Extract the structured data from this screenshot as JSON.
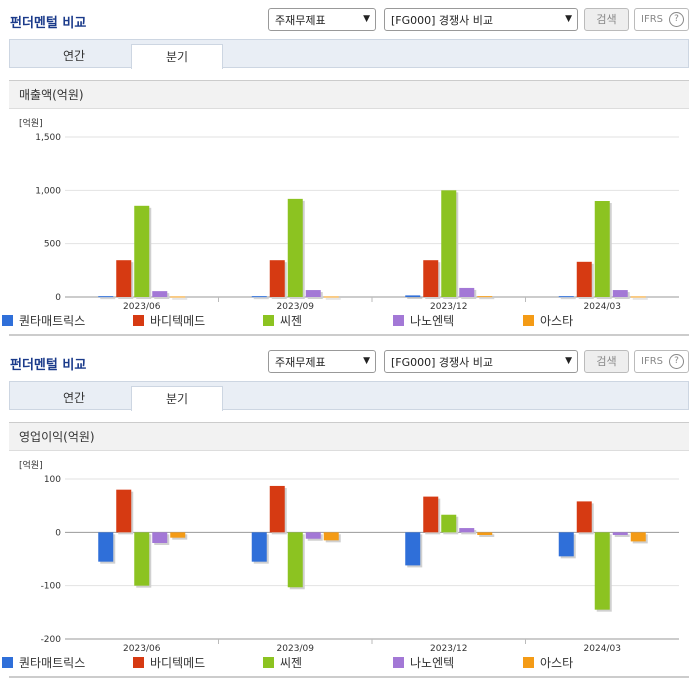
{
  "header_title": "펀더멘털 비교",
  "select_1": "주재무제표",
  "select_2": "[FG000] 경쟁사 비교",
  "search_label": "검색",
  "ifrs_label": "IFRS",
  "help_label": "?",
  "tabs": [
    "연간",
    "분기"
  ],
  "active_tab": 1,
  "colors": [
    "#2f6fd9",
    "#d63a12",
    "#8cc321",
    "#a378d6",
    "#f49b16"
  ],
  "chart_data": [
    {
      "type": "bar",
      "title": "매출액(억원)",
      "unit_label": "[억원]",
      "categories": [
        "2023/06",
        "2023/09",
        "2023/12",
        "2024/03"
      ],
      "ylim": [
        0,
        1500
      ],
      "yticks": [
        0,
        500,
        1000,
        1500
      ],
      "ytick_labels": [
        "0",
        "500",
        "1,000",
        "1,500"
      ],
      "series": [
        {
          "name": "퀀타매트릭스",
          "values": [
            8,
            8,
            15,
            8
          ]
        },
        {
          "name": "바디텍메드",
          "values": [
            345,
            345,
            345,
            330
          ]
        },
        {
          "name": "씨젠",
          "values": [
            855,
            920,
            1000,
            900
          ]
        },
        {
          "name": "나노엔텍",
          "values": [
            55,
            65,
            85,
            65
          ]
        },
        {
          "name": "아스타",
          "values": [
            5,
            5,
            8,
            5
          ]
        }
      ],
      "grid": true,
      "legend": "bottom"
    },
    {
      "type": "bar",
      "title": "영업이익(억원)",
      "unit_label": "[억원]",
      "categories": [
        "2023/06",
        "2023/09",
        "2023/12",
        "2024/03"
      ],
      "ylim": [
        -200,
        100
      ],
      "yticks": [
        -200,
        -100,
        0,
        100
      ],
      "ytick_labels": [
        "-200",
        "-100",
        "0",
        "100"
      ],
      "series": [
        {
          "name": "퀀타매트릭스",
          "values": [
            -55,
            -55,
            -62,
            -45
          ]
        },
        {
          "name": "바디텍메드",
          "values": [
            80,
            87,
            67,
            58
          ]
        },
        {
          "name": "씨젠",
          "values": [
            -100,
            -103,
            33,
            -145
          ]
        },
        {
          "name": "나노엔텍",
          "values": [
            -20,
            -12,
            8,
            -5
          ]
        },
        {
          "name": "아스타",
          "values": [
            -10,
            -15,
            -5,
            -17
          ]
        }
      ],
      "grid": true,
      "legend": "bottom"
    }
  ]
}
